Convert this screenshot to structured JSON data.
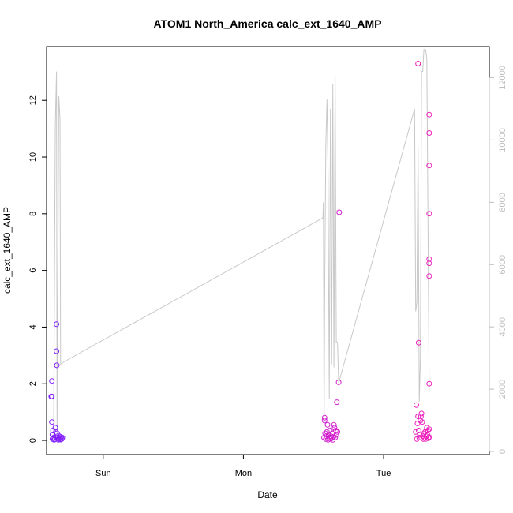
{
  "chart_data": {
    "type": "scatter",
    "title": "ATOM1 North_America calc_ext_1640_AMP",
    "xlabel": "Date",
    "ylabel": "calc_ext_1640_AMP",
    "x_axis": {
      "unit": "hours since Sat 00:00",
      "range": [
        14.3,
        90.1
      ],
      "ticks": [
        {
          "value": 24,
          "label": "Sun"
        },
        {
          "value": 48,
          "label": "Mon"
        },
        {
          "value": 72,
          "label": "Tue"
        }
      ]
    },
    "y_left": {
      "range": [
        -0.5,
        13.9
      ],
      "ticks": [
        0,
        2,
        4,
        6,
        8,
        10,
        12
      ],
      "tick_labels": [
        "0",
        "2",
        "4",
        "6",
        "8",
        "10",
        "12"
      ]
    },
    "y_right": {
      "range": [
        -100,
        13000
      ],
      "ticks": [
        0,
        2000,
        4000,
        6000,
        8000,
        10000,
        12000
      ],
      "tick_labels": [
        "0",
        "2000",
        "4000",
        "6000",
        "8000",
        "10000",
        "12000"
      ],
      "color": "#bdbdbd"
    },
    "series": [
      {
        "kind": "points",
        "axis": "left",
        "marker": "open-circle",
        "color_gradient": [
          "#7f1fff",
          "#ff1faf"
        ],
        "points": [
          [
            15.1,
            1.55
          ],
          [
            15.2,
            2.1
          ],
          [
            15.2,
            1.55
          ],
          [
            15.2,
            0.65
          ],
          [
            15.3,
            0.2
          ],
          [
            15.3,
            0.05
          ],
          [
            15.4,
            0.35
          ],
          [
            15.5,
            0.1
          ],
          [
            15.6,
            0.02
          ],
          [
            15.7,
            0.05
          ],
          [
            15.8,
            0.45
          ],
          [
            15.9,
            0.3
          ],
          [
            16.0,
            3.15
          ],
          [
            16.0,
            4.1
          ],
          [
            16.05,
            2.65
          ],
          [
            16.1,
            0.25
          ],
          [
            16.2,
            0.1
          ],
          [
            16.3,
            0.02
          ],
          [
            16.4,
            0.05
          ],
          [
            16.5,
            0.15
          ],
          [
            16.6,
            0.08
          ],
          [
            16.7,
            0.03
          ],
          [
            16.8,
            0.12
          ],
          [
            16.9,
            0.05
          ],
          [
            17.0,
            0.1
          ],
          [
            61.8,
            0.1
          ],
          [
            61.9,
            0.8
          ],
          [
            61.9,
            0.7
          ],
          [
            62.0,
            0.25
          ],
          [
            62.1,
            0.05
          ],
          [
            62.2,
            0.15
          ],
          [
            62.3,
            0.3
          ],
          [
            62.4,
            0.55
          ],
          [
            62.5,
            0.02
          ],
          [
            62.6,
            0.2
          ],
          [
            62.7,
            0.1
          ],
          [
            62.8,
            0.35
          ],
          [
            62.9,
            0.05
          ],
          [
            63.0,
            0.15
          ],
          [
            63.1,
            0.08
          ],
          [
            63.2,
            0.25
          ],
          [
            63.3,
            0.02
          ],
          [
            63.4,
            0.12
          ],
          [
            63.5,
            0.55
          ],
          [
            63.6,
            0.45
          ],
          [
            63.7,
            0.1
          ],
          [
            63.8,
            0.35
          ],
          [
            63.9,
            0.2
          ],
          [
            64.0,
            1.35
          ],
          [
            64.1,
            0.3
          ],
          [
            64.3,
            2.05
          ],
          [
            64.4,
            8.05
          ],
          [
            77.5,
            0.3
          ],
          [
            77.6,
            1.25
          ],
          [
            77.7,
            0.05
          ],
          [
            77.8,
            0.6
          ],
          [
            77.9,
            0.85
          ],
          [
            78.0,
            0.35
          ],
          [
            78.1,
            0.1
          ],
          [
            78.2,
            0.2
          ],
          [
            78.3,
            0.7
          ],
          [
            78.4,
            0.85
          ],
          [
            78.5,
            0.95
          ],
          [
            78.6,
            0.65
          ],
          [
            78.7,
            0.15
          ],
          [
            78.8,
            0.05
          ],
          [
            78.9,
            0.25
          ],
          [
            79.0,
            0.1
          ],
          [
            79.1,
            0.3
          ],
          [
            79.2,
            0.05
          ],
          [
            79.3,
            0.15
          ],
          [
            79.4,
            0.45
          ],
          [
            79.5,
            0.2
          ],
          [
            79.6,
            0.35
          ],
          [
            79.7,
            0.08
          ],
          [
            79.8,
            0.12
          ],
          [
            77.9,
            13.3
          ],
          [
            78.0,
            3.45
          ],
          [
            79.8,
            11.5
          ],
          [
            79.8,
            10.85
          ],
          [
            79.8,
            9.7
          ],
          [
            79.8,
            8.0
          ],
          [
            79.8,
            6.4
          ],
          [
            79.8,
            6.25
          ],
          [
            79.8,
            5.8
          ],
          [
            79.8,
            2.0
          ],
          [
            79.8,
            0.4
          ]
        ]
      },
      {
        "kind": "line",
        "axis": "right",
        "color": "#c8c8c8",
        "points": [
          [
            15.5,
            300
          ],
          [
            15.8,
            10500
          ],
          [
            16.0,
            12200
          ],
          [
            16.1,
            600
          ],
          [
            16.2,
            4600
          ],
          [
            16.4,
            11400
          ],
          [
            16.6,
            10700
          ],
          [
            16.7,
            2800
          ],
          [
            17.0,
            2850
          ],
          [
            61.6,
            7500
          ],
          [
            61.7,
            8000
          ],
          [
            61.8,
            600
          ],
          [
            61.9,
            4800
          ],
          [
            62.1,
            9800
          ],
          [
            62.3,
            11300
          ],
          [
            62.5,
            8900
          ],
          [
            62.7,
            1700
          ],
          [
            62.9,
            11000
          ],
          [
            63.1,
            2800
          ],
          [
            63.3,
            11800
          ],
          [
            63.5,
            2700
          ],
          [
            63.7,
            12100
          ],
          [
            63.9,
            3500
          ],
          [
            64.1,
            3500
          ],
          [
            64.3,
            2200
          ],
          [
            77.3,
            11000
          ],
          [
            77.5,
            4500
          ],
          [
            77.7,
            4800
          ],
          [
            77.9,
            9800
          ],
          [
            78.1,
            1600
          ],
          [
            78.3,
            3000
          ],
          [
            78.5,
            12200
          ],
          [
            78.7,
            12200
          ],
          [
            78.9,
            12900
          ],
          [
            79.2,
            12900
          ],
          [
            79.4,
            12600
          ],
          [
            79.8,
            1900
          ]
        ]
      }
    ]
  }
}
